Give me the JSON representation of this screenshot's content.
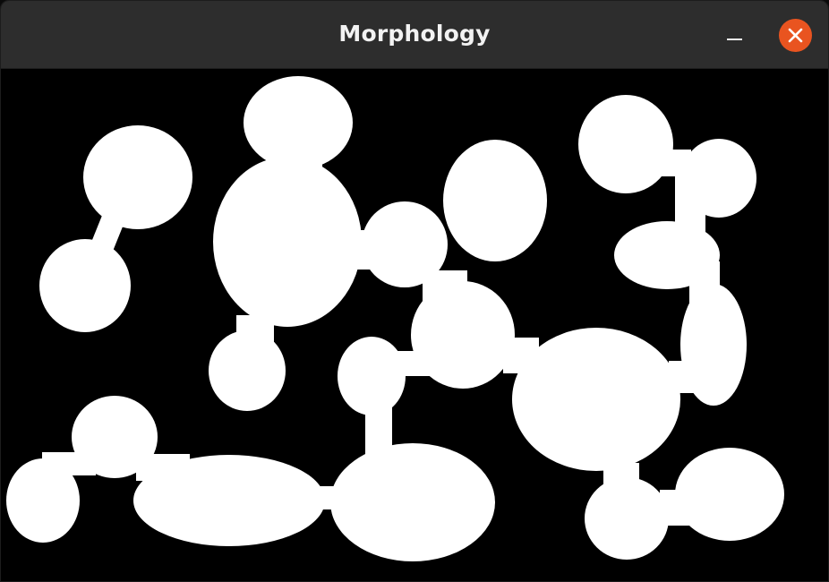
{
  "window": {
    "title": "Morphology"
  },
  "controls": {
    "minimize_icon": "minimize-icon",
    "close_icon": "close-icon",
    "close_color": "#e95420"
  },
  "image": {
    "foreground_color": "#ffffff",
    "background_color": "#000000"
  }
}
